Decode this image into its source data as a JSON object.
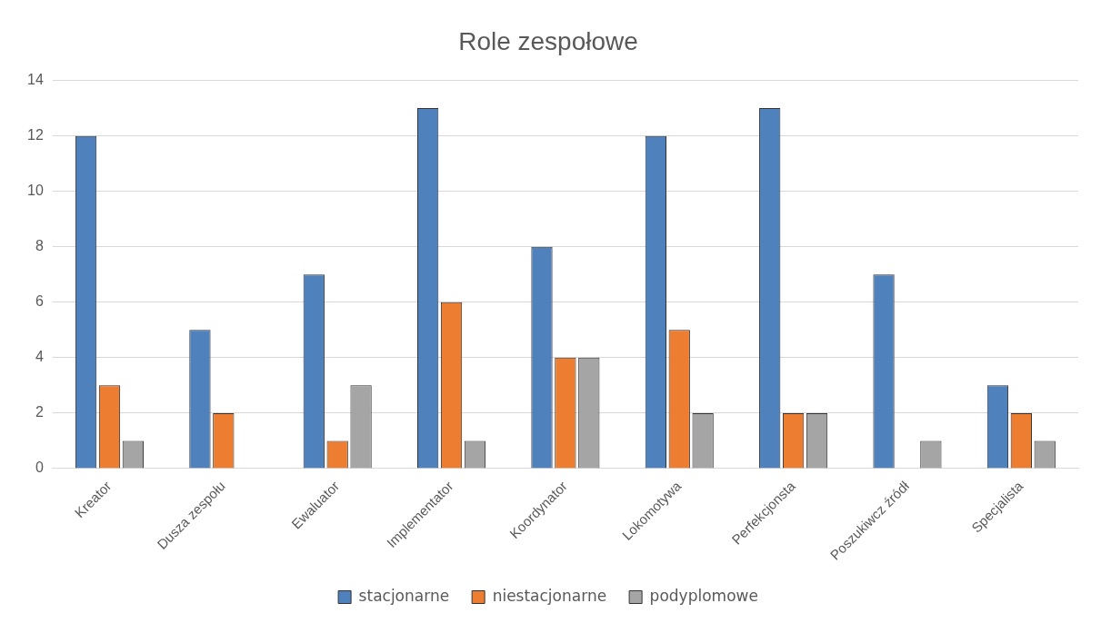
{
  "chart_data": {
    "type": "bar",
    "title": "Role zespołowe",
    "categories": [
      "Kreator",
      "Dusza zespołu",
      "Ewaluator",
      "Implementator",
      "Koordynator",
      "Lokomotywa",
      "Perfekcjonsta",
      "Poszukiwcz źródł",
      "Specjalista"
    ],
    "series": [
      {
        "name": "stacjonarne",
        "color": "#4f81bd",
        "values": [
          12,
          5,
          7,
          13,
          8,
          12,
          13,
          7,
          3
        ]
      },
      {
        "name": "niestacjonarne",
        "color": "#ed7d31",
        "values": [
          3,
          2,
          1,
          6,
          4,
          5,
          2,
          0,
          2
        ]
      },
      {
        "name": "podyplomowe",
        "color": "#a5a5a5",
        "values": [
          1,
          0,
          3,
          1,
          4,
          2,
          2,
          1,
          1
        ]
      }
    ],
    "ylim": [
      0,
      14
    ],
    "yticks": [
      0,
      2,
      4,
      6,
      8,
      10,
      12,
      14
    ],
    "grid": "y",
    "legend": "bottom"
  }
}
